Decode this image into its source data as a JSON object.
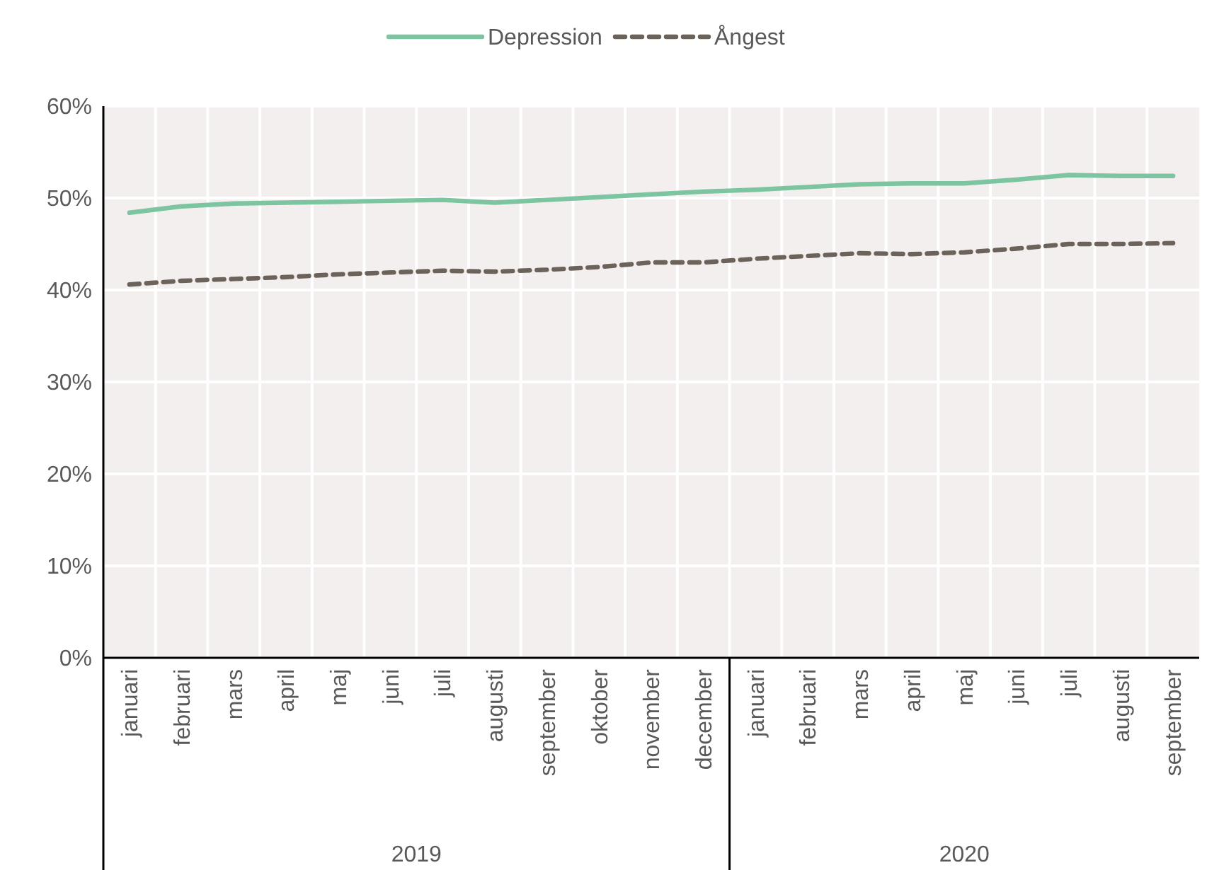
{
  "chart_data": {
    "type": "line",
    "categories": [
      "januari",
      "februari",
      "mars",
      "april",
      "maj",
      "juni",
      "juli",
      "augusti",
      "september",
      "oktober",
      "november",
      "december",
      "januari",
      "februari",
      "mars",
      "april",
      "maj",
      "juni",
      "juli",
      "augusti",
      "september"
    ],
    "series": [
      {
        "name": "Depression",
        "color": "#7dc5a0",
        "line_style": "solid",
        "values": [
          48.4,
          49.1,
          49.4,
          49.5,
          49.6,
          49.7,
          49.8,
          49.5,
          49.8,
          50.1,
          50.4,
          50.7,
          50.9,
          51.2,
          51.5,
          51.6,
          51.6,
          52.0,
          52.5,
          52.4,
          52.4
        ]
      },
      {
        "name": "Ångest",
        "color": "#6b625a",
        "line_style": "dashed",
        "values": [
          40.6,
          41.0,
          41.2,
          41.4,
          41.7,
          41.9,
          42.1,
          42.0,
          42.2,
          42.5,
          43.0,
          43.0,
          43.4,
          43.7,
          44.0,
          43.9,
          44.1,
          44.5,
          45.0,
          45.0,
          45.1
        ]
      }
    ],
    "ylim": [
      0,
      60
    ],
    "yticks": [
      {
        "value": 0,
        "label": "0%"
      },
      {
        "value": 10,
        "label": "10%"
      },
      {
        "value": 20,
        "label": "20%"
      },
      {
        "value": 30,
        "label": "30%"
      },
      {
        "value": 40,
        "label": "40%"
      },
      {
        "value": 50,
        "label": "50%"
      },
      {
        "value": 60,
        "label": "60%"
      }
    ],
    "grid": true,
    "legend": "top",
    "annotations": [
      "2019",
      "2020"
    ]
  }
}
